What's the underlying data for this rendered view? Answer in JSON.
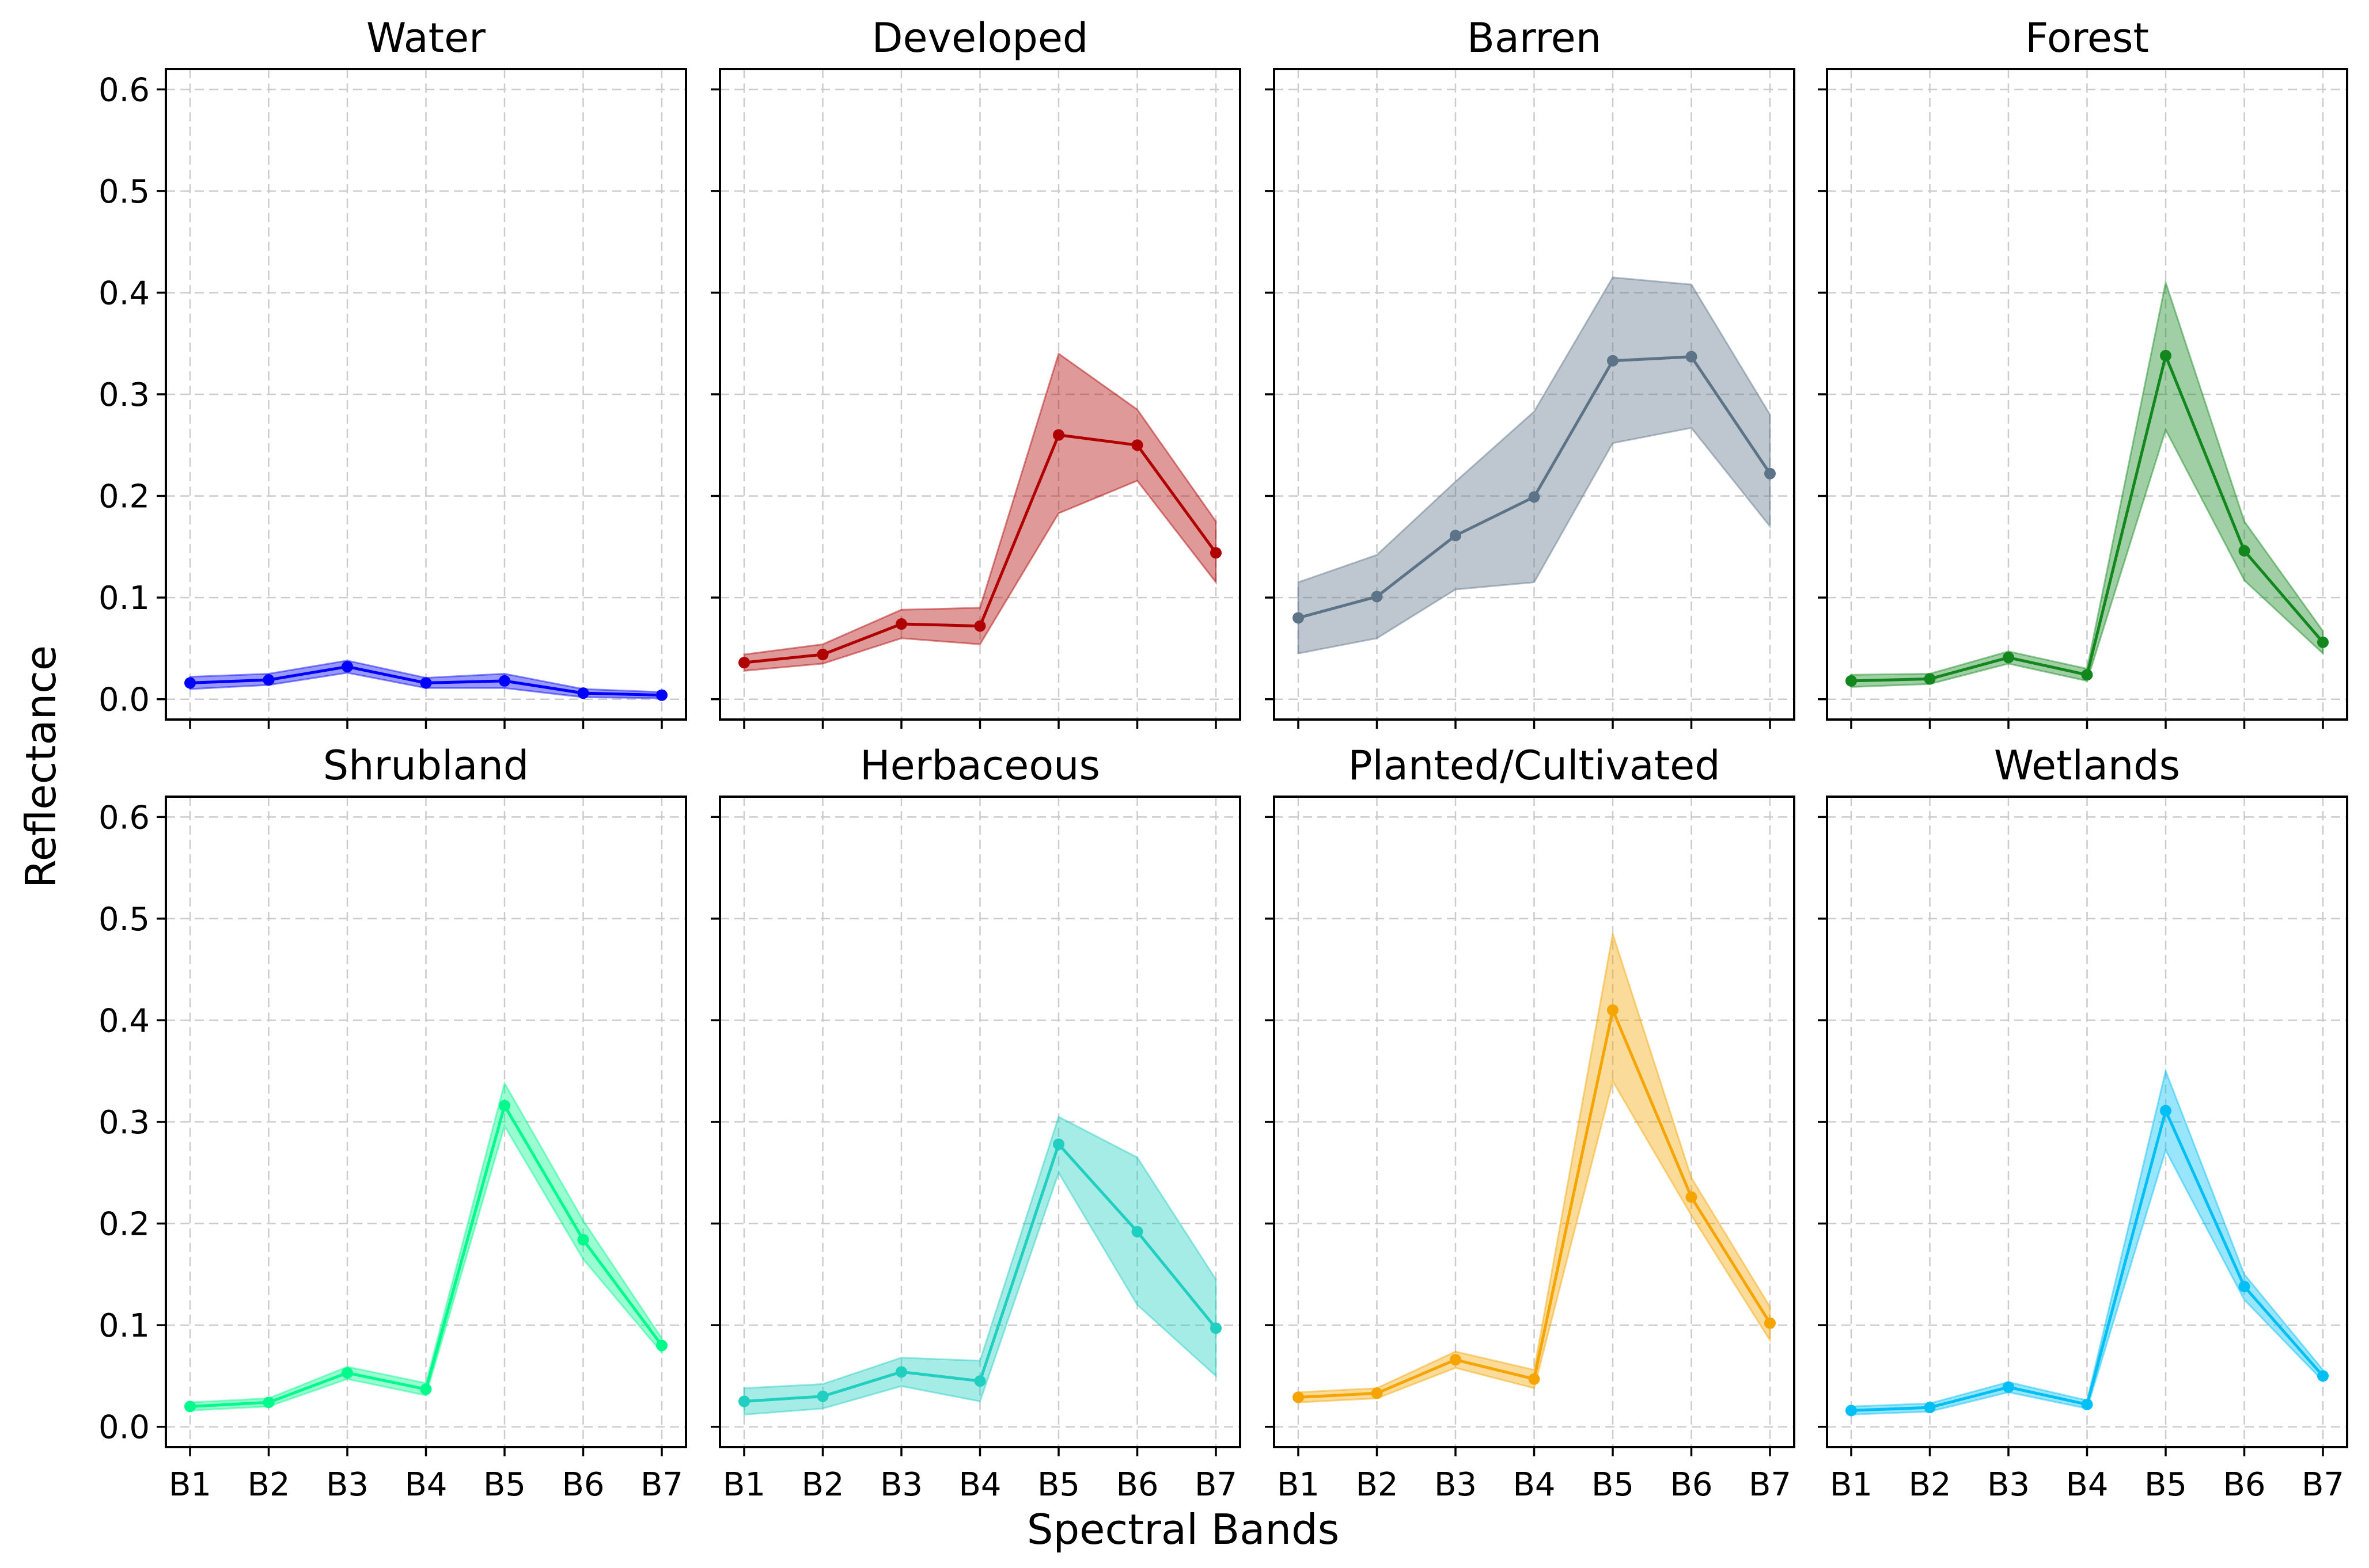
{
  "chart_data": {
    "type": "line",
    "xlabel": "Spectral Bands",
    "ylabel": "Reflectance",
    "categories": [
      "B1",
      "B2",
      "B3",
      "B4",
      "B5",
      "B6",
      "B7"
    ],
    "ylim": [
      -0.02,
      0.62
    ],
    "yticks": [
      0.0,
      0.1,
      0.2,
      0.3,
      0.4,
      0.5,
      0.6
    ],
    "ytick_labels": [
      "0.0",
      "0.1",
      "0.2",
      "0.3",
      "0.4",
      "0.5",
      "0.6"
    ],
    "grid": true,
    "layout": "2 rows x 4 columns, shared axes",
    "panels": [
      {
        "title": "Water",
        "color": "#0000ff",
        "mean": [
          0.016,
          0.019,
          0.032,
          0.016,
          0.018,
          0.006,
          0.004
        ],
        "lower": [
          0.01,
          0.014,
          0.026,
          0.011,
          0.011,
          0.002,
          0.001
        ],
        "upper": [
          0.022,
          0.025,
          0.038,
          0.021,
          0.025,
          0.01,
          0.007
        ]
      },
      {
        "title": "Developed",
        "color": "#b00000",
        "mean": [
          0.036,
          0.044,
          0.074,
          0.072,
          0.26,
          0.25,
          0.144
        ],
        "lower": [
          0.028,
          0.035,
          0.06,
          0.054,
          0.183,
          0.215,
          0.115
        ],
        "upper": [
          0.044,
          0.054,
          0.088,
          0.09,
          0.34,
          0.285,
          0.175
        ]
      },
      {
        "title": "Barren",
        "color": "#5d7488",
        "mean": [
          0.08,
          0.101,
          0.161,
          0.199,
          0.333,
          0.337,
          0.222
        ],
        "lower": [
          0.045,
          0.06,
          0.108,
          0.115,
          0.252,
          0.267,
          0.17
        ],
        "upper": [
          0.115,
          0.142,
          0.214,
          0.283,
          0.415,
          0.408,
          0.28
        ]
      },
      {
        "title": "Forest",
        "color": "#12871d",
        "mean": [
          0.018,
          0.02,
          0.041,
          0.024,
          0.338,
          0.146,
          0.056
        ],
        "lower": [
          0.012,
          0.015,
          0.035,
          0.018,
          0.265,
          0.117,
          0.045
        ],
        "upper": [
          0.024,
          0.025,
          0.047,
          0.03,
          0.41,
          0.175,
          0.067
        ]
      },
      {
        "title": "Shrubland",
        "color": "#00fa8c",
        "mean": [
          0.02,
          0.024,
          0.053,
          0.037,
          0.316,
          0.184,
          0.08
        ],
        "lower": [
          0.016,
          0.02,
          0.047,
          0.031,
          0.296,
          0.165,
          0.073
        ],
        "upper": [
          0.024,
          0.028,
          0.059,
          0.043,
          0.338,
          0.203,
          0.087
        ]
      },
      {
        "title": "Herbaceous",
        "color": "#20cfc0",
        "mean": [
          0.025,
          0.03,
          0.054,
          0.045,
          0.278,
          0.192,
          0.097
        ],
        "lower": [
          0.012,
          0.018,
          0.04,
          0.025,
          0.25,
          0.12,
          0.05
        ],
        "upper": [
          0.038,
          0.042,
          0.068,
          0.065,
          0.305,
          0.265,
          0.145
        ]
      },
      {
        "title": "Planted/Cultivated",
        "color": "#f5a400",
        "mean": [
          0.029,
          0.033,
          0.066,
          0.047,
          0.41,
          0.226,
          0.102
        ],
        "lower": [
          0.024,
          0.028,
          0.058,
          0.038,
          0.34,
          0.208,
          0.085
        ],
        "upper": [
          0.034,
          0.038,
          0.074,
          0.056,
          0.485,
          0.245,
          0.118
        ]
      },
      {
        "title": "Wetlands",
        "color": "#00bff5",
        "mean": [
          0.016,
          0.019,
          0.039,
          0.022,
          0.311,
          0.138,
          0.05
        ],
        "lower": [
          0.012,
          0.015,
          0.034,
          0.018,
          0.272,
          0.125,
          0.045
        ],
        "upper": [
          0.02,
          0.023,
          0.044,
          0.026,
          0.35,
          0.15,
          0.056
        ]
      }
    ]
  }
}
